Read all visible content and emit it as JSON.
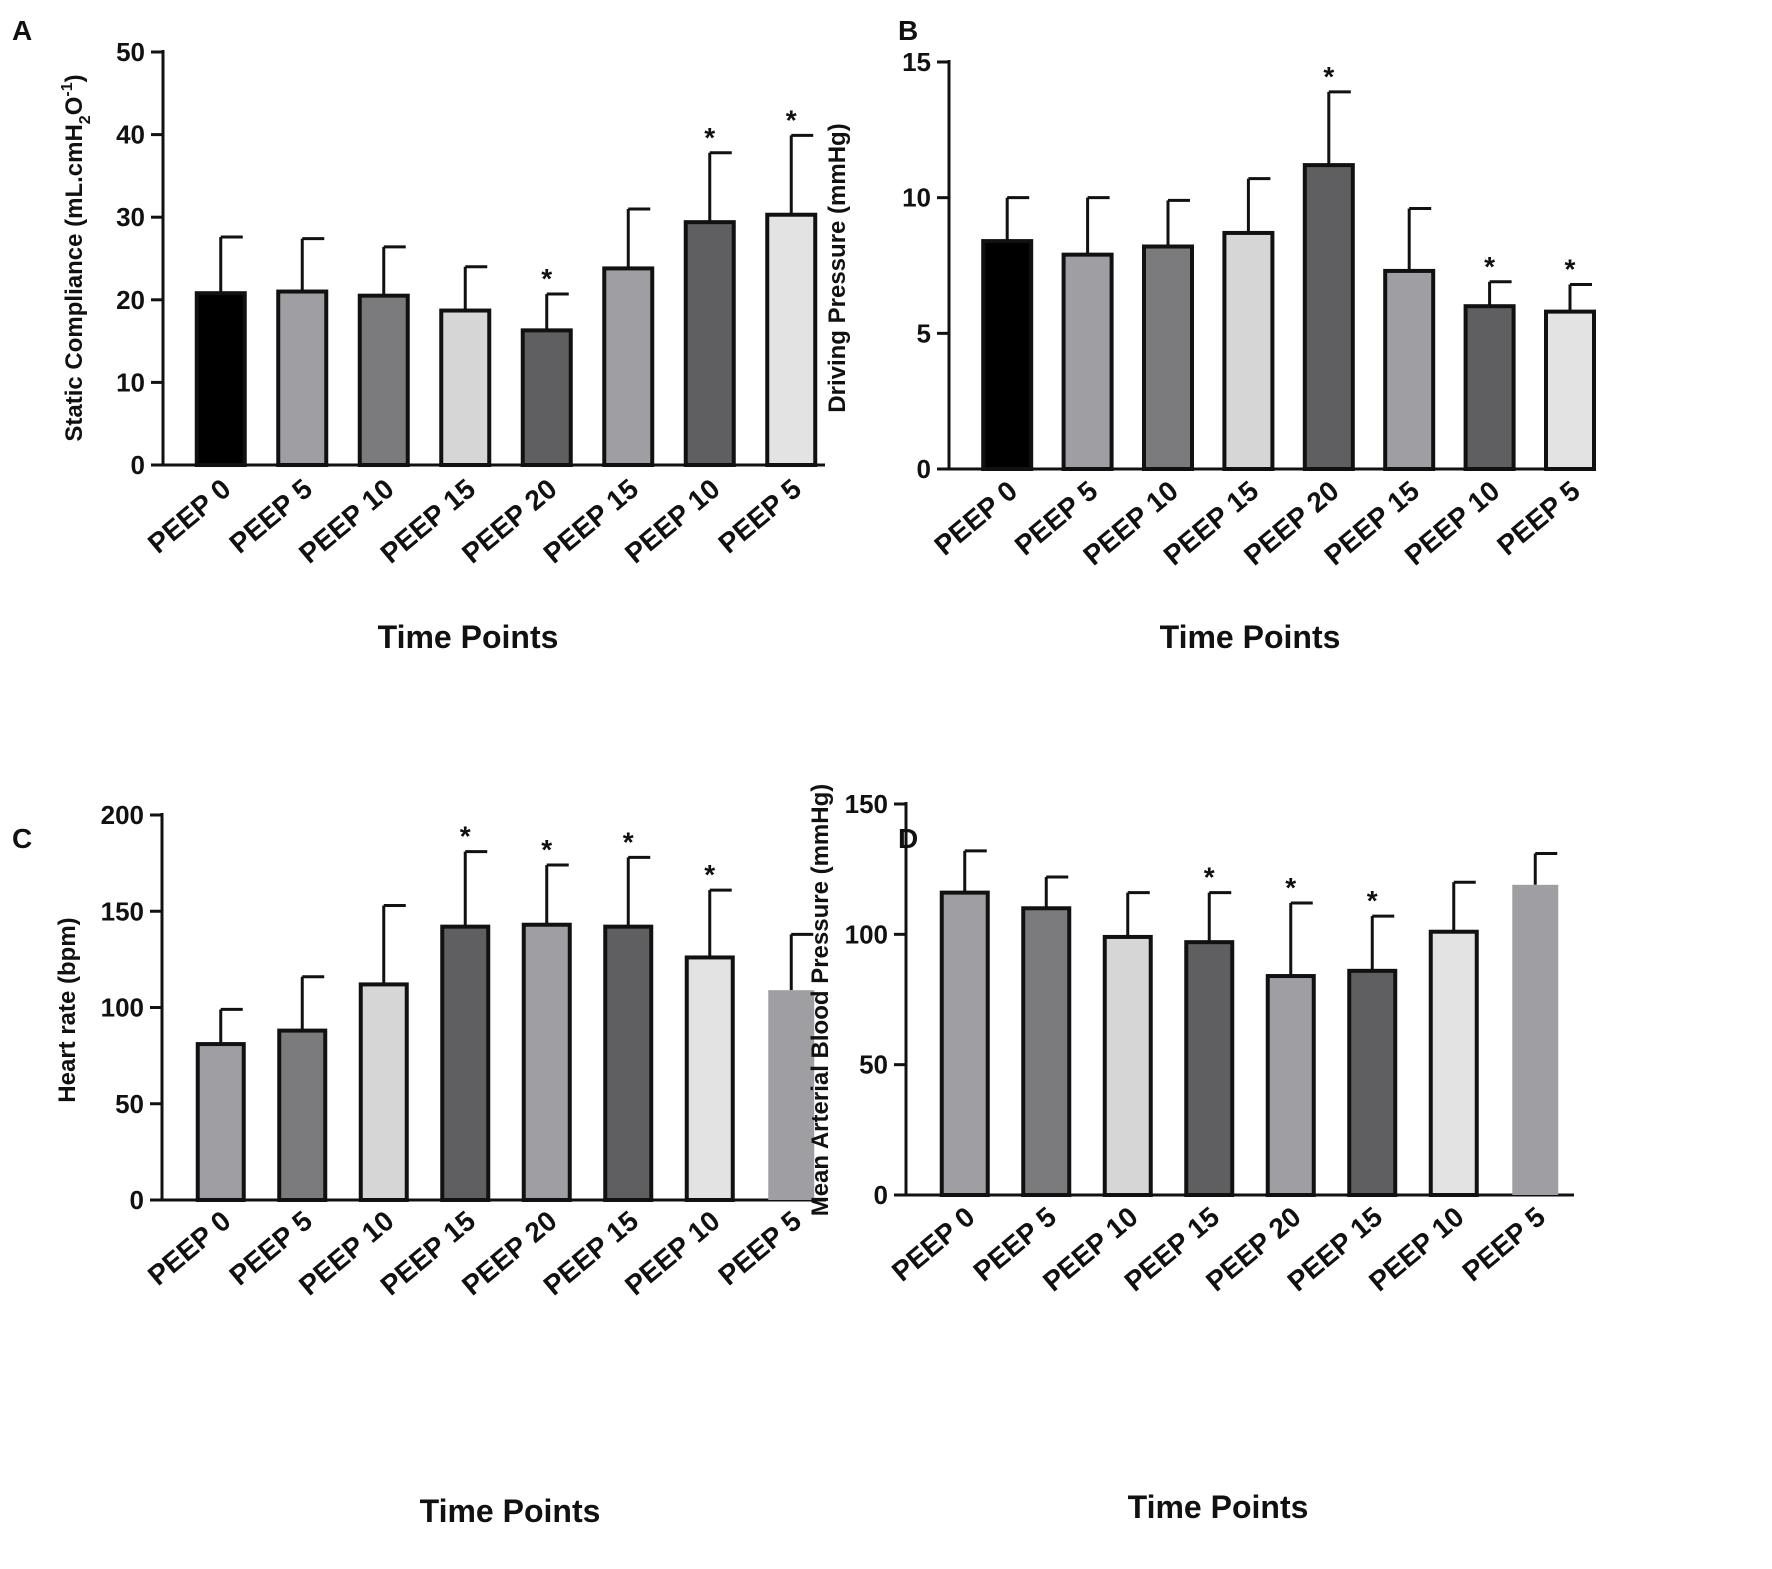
{
  "figure": {
    "panels": [
      {
        "label": "A"
      },
      {
        "label": "B"
      },
      {
        "label": "C"
      },
      {
        "label": "D"
      }
    ]
  },
  "chart_data": [
    {
      "panel": "A",
      "type": "bar",
      "title": "",
      "xlabel": "Time Points",
      "ylabel": "Static Compliance (mL.cmH",
      "ylabel_sub": "2",
      "ylabel_mid": "O",
      "ylabel_sup": "-1",
      "ylabel_end": ")",
      "categories": [
        "PEEP 0",
        "PEEP 5",
        "PEEP 10",
        "PEEP 15",
        "PEEP 20",
        "PEEP 15",
        "PEEP 10",
        "PEEP 5"
      ],
      "values": [
        20.8,
        21.0,
        20.5,
        18.7,
        16.3,
        23.8,
        29.4,
        30.3
      ],
      "errors": [
        6.8,
        6.4,
        5.9,
        5.3,
        4.4,
        7.2,
        8.4,
        9.6
      ],
      "significance": [
        "",
        "",
        "",
        "",
        "*",
        "",
        "*",
        "*"
      ],
      "colors": [
        "#000000",
        "#9f9fa3",
        "#7b7b7d",
        "#d6d6d6",
        "#5f5f61",
        "#9f9fa3",
        "#5f5f61",
        "#e3e3e3"
      ],
      "ylim": [
        0,
        50
      ],
      "yticks": [
        0,
        10,
        20,
        30,
        40,
        50
      ]
    },
    {
      "panel": "B",
      "type": "bar",
      "title": "",
      "xlabel": "Time Points",
      "ylabel": "Driving Pressure (mmHg)",
      "categories": [
        "PEEP 0",
        "PEEP 5",
        "PEEP 10",
        "PEEP 15",
        "PEEP 20",
        "PEEP 15",
        "PEEP 10",
        "PEEP 5"
      ],
      "values": [
        8.4,
        7.9,
        8.2,
        8.7,
        11.2,
        7.3,
        6.0,
        5.8
      ],
      "errors": [
        1.6,
        2.1,
        1.7,
        2.0,
        2.7,
        2.3,
        0.9,
        1.0
      ],
      "significance": [
        "",
        "",
        "",
        "",
        "*",
        "",
        "*",
        "*"
      ],
      "colors": [
        "#000000",
        "#9f9fa3",
        "#7b7b7d",
        "#d6d6d6",
        "#5f5f61",
        "#9f9fa3",
        "#5f5f61",
        "#e3e3e3"
      ],
      "ylim": [
        0,
        15
      ],
      "yticks": [
        0,
        5,
        10,
        15
      ]
    },
    {
      "panel": "C",
      "type": "bar",
      "title": "",
      "xlabel": "Time Points",
      "ylabel": "Heart rate  (bpm)",
      "categories": [
        "PEEP 0",
        "PEEP 5",
        "PEEP 10",
        "PEEP 15",
        "PEEP 20",
        "PEEP 15",
        "PEEP 10",
        "PEEP 5"
      ],
      "values": [
        81,
        88,
        112,
        142,
        143,
        142,
        126,
        109
      ],
      "errors": [
        18,
        28,
        41,
        39,
        31,
        36,
        35,
        29
      ],
      "significance": [
        "",
        "",
        "",
        "*",
        "*",
        "*",
        "*",
        ""
      ],
      "colors": [
        "#9f9fa3",
        "#7b7b7d",
        "#d6d6d6",
        "#5f5f61",
        "#9f9fa3",
        "#5f5f61",
        "#e3e3e3",
        "#9f9fa3"
      ],
      "ylim": [
        0,
        200
      ],
      "yticks": [
        0,
        50,
        100,
        150,
        200
      ]
    },
    {
      "panel": "D",
      "type": "bar",
      "title": "",
      "xlabel": "Time Points",
      "ylabel": "Mean Arterial Blood Pressure (mmHg)",
      "categories": [
        "PEEP 0",
        "PEEP 5",
        "PEEP 10",
        "PEEP 15",
        "PEEP 20",
        "PEEP 15",
        "PEEP 10",
        "PEEP 5"
      ],
      "values": [
        116,
        110,
        99,
        97,
        84,
        86,
        101,
        119
      ],
      "errors": [
        16,
        12,
        17,
        19,
        28,
        21,
        19,
        12
      ],
      "significance": [
        "",
        "",
        "",
        "*",
        "*",
        "*",
        "",
        ""
      ],
      "colors": [
        "#9f9fa3",
        "#7b7b7d",
        "#d6d6d6",
        "#5f5f61",
        "#9f9fa3",
        "#5f5f61",
        "#e3e3e3",
        "#9f9fa3"
      ],
      "ylim": [
        0,
        150
      ],
      "yticks": [
        0,
        50,
        100,
        150
      ]
    }
  ]
}
